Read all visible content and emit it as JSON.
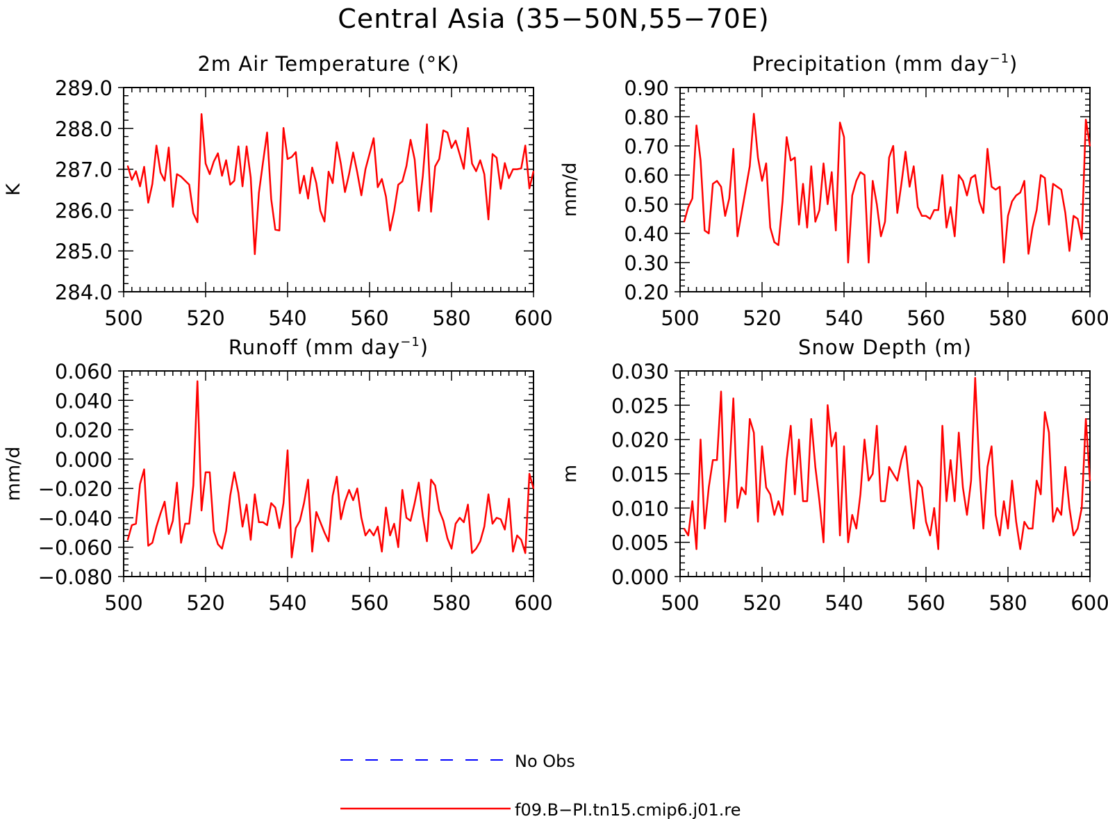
{
  "title": "Central Asia (35−50N,55−70E)",
  "colors": {
    "model": "#ff0000",
    "obs": "#0000ff",
    "axis": "#000000"
  },
  "legend": {
    "entries": [
      {
        "label": "No Obs",
        "style": "dashed",
        "color": "#0000ff"
      },
      {
        "label": "f09.B−PI.tn15.cmip6.j01.re",
        "style": "solid",
        "color": "#ff0000"
      }
    ]
  },
  "chart_data": [
    {
      "type": "line",
      "title_main": "2m Air Temperature (°K)",
      "title_sup": "",
      "title_tail": "",
      "ylabel": "K",
      "xlim": [
        500,
        600
      ],
      "ylim": [
        284,
        289
      ],
      "xticks": [
        500,
        520,
        540,
        560,
        580,
        600
      ],
      "xticklabels": [
        "500",
        "520",
        "540",
        "560",
        "580",
        "600"
      ],
      "yticks": [
        284,
        285,
        286,
        287,
        288,
        289
      ],
      "yticklabels": [
        "284.0",
        "285.0",
        "286.0",
        "287.0",
        "288.0",
        "289.0"
      ],
      "series": [
        {
          "x_start": 501,
          "values": [
            287.08,
            286.74,
            286.95,
            286.58,
            287.06,
            286.18,
            286.64,
            287.58,
            286.92,
            286.72,
            287.53,
            286.08,
            286.88,
            286.82,
            286.72,
            286.62,
            285.92,
            285.7,
            288.35,
            287.14,
            286.88,
            287.19,
            287.39,
            286.84,
            287.22,
            286.62,
            286.72,
            287.56,
            286.58,
            287.56,
            286.8,
            284.92,
            286.42,
            287.17,
            287.9,
            286.27,
            285.52,
            285.5,
            288.01,
            287.25,
            287.3,
            287.42,
            286.41,
            286.84,
            286.28,
            287.04,
            286.66,
            285.98,
            285.72,
            286.94,
            286.66,
            287.66,
            287.13,
            286.44,
            286.88,
            287.41,
            286.92,
            286.36,
            287.0,
            287.38,
            287.76,
            286.56,
            286.76,
            286.33,
            285.5,
            285.98,
            286.62,
            286.7,
            287.08,
            287.72,
            287.24,
            285.98,
            286.84,
            288.1,
            285.96,
            287.07,
            287.25,
            287.95,
            287.9,
            287.52,
            287.7,
            287.36,
            287.01,
            288.01,
            287.14,
            286.95,
            287.22,
            286.88,
            285.77,
            287.37,
            287.28,
            286.52,
            287.15,
            286.78,
            287.0,
            287.0,
            287.02,
            287.58,
            286.53,
            286.95
          ]
        }
      ]
    },
    {
      "type": "line",
      "title_main": "Precipitation (mm day",
      "title_sup": "−1",
      "title_tail": ")",
      "ylabel": "mm/d",
      "xlim": [
        500,
        600
      ],
      "ylim": [
        0.2,
        0.9
      ],
      "xticks": [
        500,
        520,
        540,
        560,
        580,
        600
      ],
      "xticklabels": [
        "500",
        "520",
        "540",
        "560",
        "580",
        "600"
      ],
      "yticks": [
        0.2,
        0.3,
        0.4,
        0.5,
        0.6,
        0.7,
        0.8,
        0.9
      ],
      "yticklabels": [
        "0.20",
        "0.30",
        "0.40",
        "0.50",
        "0.60",
        "0.70",
        "0.80",
        "0.90"
      ],
      "series": [
        {
          "x_start": 501,
          "values": [
            0.44,
            0.49,
            0.52,
            0.77,
            0.65,
            0.41,
            0.4,
            0.57,
            0.58,
            0.56,
            0.46,
            0.52,
            0.69,
            0.39,
            0.47,
            0.55,
            0.63,
            0.81,
            0.66,
            0.58,
            0.64,
            0.42,
            0.37,
            0.36,
            0.51,
            0.73,
            0.65,
            0.66,
            0.43,
            0.57,
            0.42,
            0.63,
            0.44,
            0.48,
            0.64,
            0.5,
            0.61,
            0.41,
            0.78,
            0.73,
            0.3,
            0.53,
            0.58,
            0.61,
            0.6,
            0.3,
            0.58,
            0.5,
            0.39,
            0.44,
            0.66,
            0.7,
            0.47,
            0.57,
            0.68,
            0.56,
            0.63,
            0.49,
            0.46,
            0.46,
            0.45,
            0.48,
            0.48,
            0.6,
            0.42,
            0.49,
            0.39,
            0.6,
            0.58,
            0.53,
            0.59,
            0.6,
            0.51,
            0.47,
            0.69,
            0.56,
            0.55,
            0.56,
            0.3,
            0.46,
            0.51,
            0.53,
            0.54,
            0.58,
            0.33,
            0.42,
            0.48,
            0.6,
            0.59,
            0.43,
            0.57,
            0.56,
            0.55,
            0.47,
            0.34,
            0.46,
            0.45,
            0.38,
            0.79,
            0.7
          ]
        }
      ]
    },
    {
      "type": "line",
      "title_main": "Runoff (mm day",
      "title_sup": "−1",
      "title_tail": ")",
      "ylabel": "mm/d",
      "xlim": [
        500,
        600
      ],
      "ylim": [
        -0.08,
        0.06
      ],
      "xticks": [
        500,
        520,
        540,
        560,
        580,
        600
      ],
      "xticklabels": [
        "500",
        "520",
        "540",
        "560",
        "580",
        "600"
      ],
      "yticks": [
        -0.08,
        -0.06,
        -0.04,
        -0.02,
        0.0,
        0.02,
        0.04,
        0.06
      ],
      "yticklabels": [
        "−0.080",
        "−0.060",
        "−0.040",
        "−0.020",
        "0.000",
        "0.020",
        "0.040",
        "0.060"
      ],
      "series": [
        {
          "x_start": 501,
          "values": [
            -0.055,
            -0.045,
            -0.044,
            -0.017,
            -0.007,
            -0.059,
            -0.057,
            -0.046,
            -0.037,
            -0.029,
            -0.051,
            -0.042,
            -0.016,
            -0.057,
            -0.044,
            -0.044,
            -0.018,
            0.053,
            -0.035,
            -0.009,
            -0.009,
            -0.049,
            -0.058,
            -0.061,
            -0.049,
            -0.025,
            -0.009,
            -0.023,
            -0.046,
            -0.031,
            -0.055,
            -0.024,
            -0.043,
            -0.043,
            -0.045,
            -0.03,
            -0.033,
            -0.047,
            -0.03,
            0.006,
            -0.067,
            -0.047,
            -0.042,
            -0.03,
            -0.014,
            -0.063,
            -0.036,
            -0.043,
            -0.05,
            -0.056,
            -0.025,
            -0.012,
            -0.041,
            -0.029,
            -0.021,
            -0.028,
            -0.02,
            -0.04,
            -0.052,
            -0.048,
            -0.052,
            -0.046,
            -0.063,
            -0.033,
            -0.052,
            -0.044,
            -0.06,
            -0.021,
            -0.04,
            -0.042,
            -0.03,
            -0.016,
            -0.039,
            -0.056,
            -0.014,
            -0.018,
            -0.035,
            -0.042,
            -0.054,
            -0.061,
            -0.044,
            -0.04,
            -0.043,
            -0.031,
            -0.064,
            -0.061,
            -0.056,
            -0.046,
            -0.024,
            -0.044,
            -0.04,
            -0.041,
            -0.048,
            -0.027,
            -0.063,
            -0.052,
            -0.055,
            -0.064,
            -0.01,
            -0.02
          ]
        }
      ]
    },
    {
      "type": "line",
      "title_main": "Snow Depth (m)",
      "title_sup": "",
      "title_tail": "",
      "ylabel": "m",
      "xlim": [
        500,
        600
      ],
      "ylim": [
        0.0,
        0.03
      ],
      "xticks": [
        500,
        520,
        540,
        560,
        580,
        600
      ],
      "xticklabels": [
        "500",
        "520",
        "540",
        "560",
        "580",
        "600"
      ],
      "yticks": [
        0.0,
        0.005,
        0.01,
        0.015,
        0.02,
        0.025,
        0.03
      ],
      "yticklabels": [
        "0.000",
        "0.005",
        "0.010",
        "0.015",
        "0.020",
        "0.025",
        "0.030"
      ],
      "series": [
        {
          "x_start": 501,
          "values": [
            0.007,
            0.006,
            0.011,
            0.004,
            0.02,
            0.007,
            0.013,
            0.017,
            0.017,
            0.027,
            0.008,
            0.015,
            0.026,
            0.01,
            0.013,
            0.012,
            0.023,
            0.021,
            0.008,
            0.019,
            0.013,
            0.012,
            0.009,
            0.011,
            0.009,
            0.017,
            0.022,
            0.012,
            0.02,
            0.011,
            0.011,
            0.023,
            0.016,
            0.011,
            0.005,
            0.025,
            0.019,
            0.021,
            0.006,
            0.019,
            0.005,
            0.009,
            0.007,
            0.012,
            0.02,
            0.014,
            0.015,
            0.022,
            0.011,
            0.011,
            0.016,
            0.015,
            0.014,
            0.017,
            0.019,
            0.013,
            0.007,
            0.014,
            0.013,
            0.008,
            0.006,
            0.01,
            0.004,
            0.022,
            0.011,
            0.017,
            0.011,
            0.021,
            0.013,
            0.009,
            0.014,
            0.029,
            0.016,
            0.007,
            0.016,
            0.019,
            0.009,
            0.006,
            0.011,
            0.007,
            0.014,
            0.008,
            0.004,
            0.008,
            0.007,
            0.007,
            0.014,
            0.012,
            0.024,
            0.021,
            0.008,
            0.01,
            0.009,
            0.016,
            0.01,
            0.006,
            0.007,
            0.01,
            0.023,
            0.014
          ]
        }
      ]
    }
  ]
}
